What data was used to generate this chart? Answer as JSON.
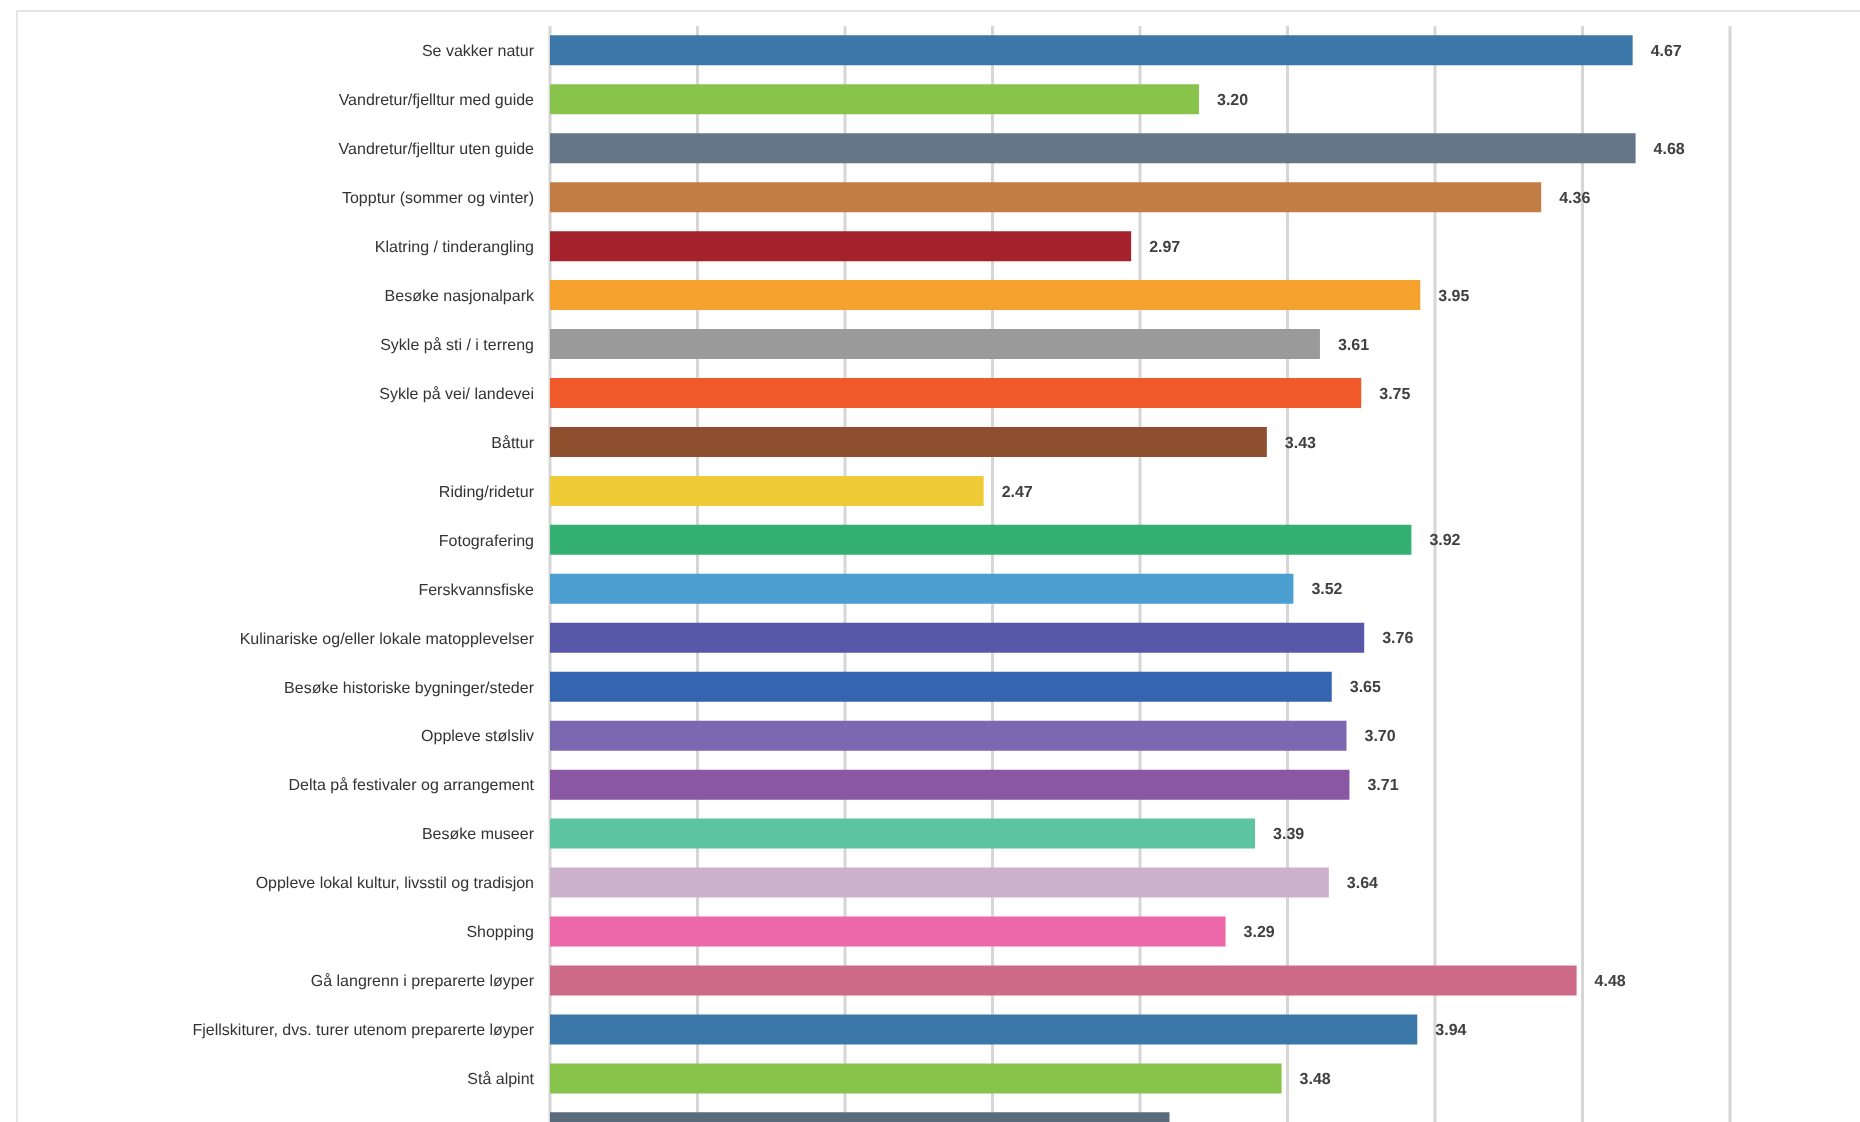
{
  "chart_data": {
    "type": "bar",
    "orientation": "horizontal",
    "categories": [
      "Se vakker natur",
      "Vandretur/fjelltur med guide",
      "Vandretur/fjelltur uten guide",
      "Topptur (sommer og vinter)",
      "Klatring / tinderangling",
      "Besøke nasjonalpark",
      "Sykle på sti / i terreng",
      "Sykle på vei/ landevei",
      "Båttur",
      "Riding/ridetur",
      "Fotografering",
      "Ferskvannsfiske",
      "Kulinariske og/eller lokale matopplevelser",
      "Besøke historiske bygninger/steder",
      "Oppleve stølsliv",
      "Delta på festivaler og arrangement",
      "Besøke museer",
      "Oppleve lokal kultur, livsstil og tradisjon",
      "Shopping",
      "Gå langrenn i preparerte løyper",
      "Fjellskiturer, dvs. turer utenom preparerte løyper",
      "Stå alpint",
      null
    ],
    "values": [
      4.67,
      3.2,
      4.68,
      4.36,
      2.97,
      3.95,
      3.61,
      3.75,
      3.43,
      2.47,
      3.92,
      3.52,
      3.76,
      3.65,
      3.7,
      3.71,
      3.39,
      3.64,
      3.29,
      4.48,
      3.94,
      3.48,
      3.1
    ],
    "value_labels": [
      "4.67",
      "3.20",
      "4.68",
      "4.36",
      "2.97",
      "3.95",
      "3.61",
      "3.75",
      "3.43",
      "2.47",
      "3.92",
      "3.52",
      "3.76",
      "3.65",
      "3.70",
      "3.71",
      "3.39",
      "3.64",
      "3.29",
      "4.48",
      "3.94",
      "3.48",
      null
    ],
    "colors": [
      "#3b78a9",
      "#88c34c",
      "#647688",
      "#c17d43",
      "#a4222b",
      "#f4a12d",
      "#9a9a9a",
      "#f0592a",
      "#8f4f2f",
      "#eecb37",
      "#34b072",
      "#4a9ed0",
      "#5858a8",
      "#3565b0",
      "#7a68b0",
      "#8a58a2",
      "#5dc4a1",
      "#cbb1cc",
      "#ec68a8",
      "#cc6a88",
      "#3b78a9",
      "#88c34c",
      "#5a6b7c"
    ],
    "xlim": [
      1,
      5
    ],
    "xticks": [
      1,
      1.5,
      2,
      2.5,
      3,
      3.5,
      4,
      4.5,
      5
    ],
    "grid": "x",
    "tick_labels": "y"
  }
}
